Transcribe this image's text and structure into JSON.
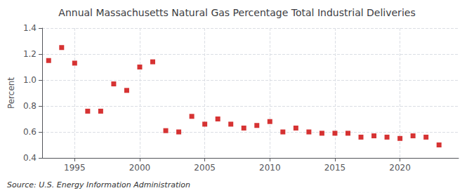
{
  "chart_data": {
    "type": "scatter",
    "title": "Annual Massachusetts Natural Gas Percentage Total Industrial Deliveries",
    "ylabel": "Percent",
    "annotation": "Source: U.S. Energy Information Administration",
    "x": [
      1993,
      1994,
      1995,
      1996,
      1997,
      1998,
      1999,
      2000,
      2001,
      2002,
      2003,
      2004,
      2005,
      2006,
      2007,
      2008,
      2009,
      2010,
      2011,
      2012,
      2013,
      2014,
      2015,
      2016,
      2017,
      2018,
      2019,
      2020,
      2021,
      2022,
      2023
    ],
    "values": [
      1.15,
      1.25,
      1.13,
      0.76,
      0.76,
      0.97,
      0.92,
      1.1,
      1.14,
      0.61,
      0.6,
      0.72,
      0.66,
      0.7,
      0.66,
      0.63,
      0.65,
      0.68,
      0.6,
      0.63,
      0.6,
      0.59,
      0.59,
      0.59,
      0.56,
      0.57,
      0.56,
      0.55,
      0.57,
      0.56,
      0.5
    ],
    "color": "#cc0000",
    "marker": "square",
    "xlim": [
      1992.5,
      2024.5
    ],
    "xticks": [
      1995,
      2000,
      2005,
      2010,
      2015,
      2020
    ],
    "ylim": [
      0.4,
      1.4
    ],
    "yticks": [
      0.4,
      0.6,
      0.8,
      {
        "value": 1.0,
        "label": "1.0"
      },
      1.2,
      1.4
    ],
    "grid": true
  }
}
